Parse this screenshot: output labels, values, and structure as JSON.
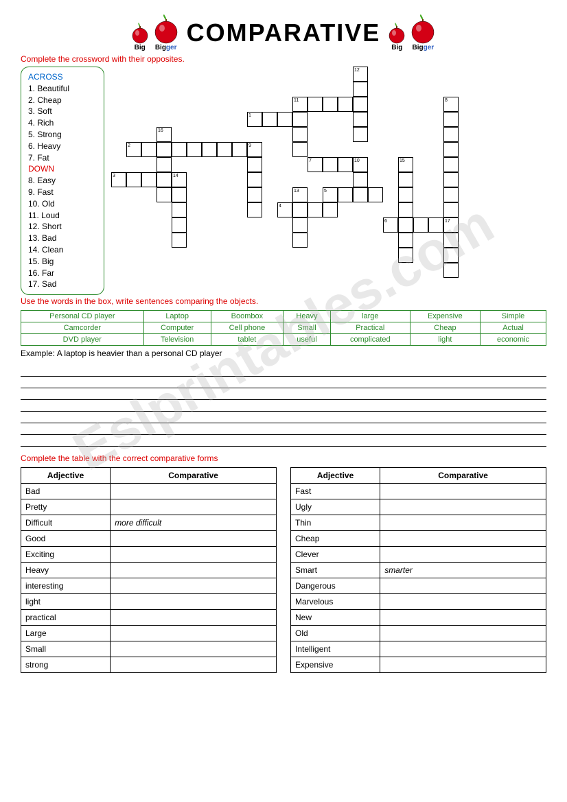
{
  "title": "COMPARATIVE",
  "apple_labels": {
    "big": "Big",
    "bigger_base": "Big",
    "bigger_suffix": "ger"
  },
  "instruction1": "Complete the crossword with their opposites.",
  "clues": {
    "across_label": "ACROSS",
    "across": [
      "1. Beautiful",
      "2. Cheap",
      "3. Soft",
      "4. Rich",
      "5. Strong",
      "6. Heavy",
      "7. Fat"
    ],
    "down_label": "DOWN",
    "down": [
      "8. Easy",
      "9. Fast",
      "10. Old",
      "11. Loud",
      "12. Short",
      "13. Bad",
      "14. Clean",
      "15. Big",
      "16. Far",
      "17. Sad"
    ]
  },
  "crossword_cells": [
    {
      "r": 0,
      "c": 16,
      "n": "12"
    },
    {
      "r": 1,
      "c": 16
    },
    {
      "r": 2,
      "c": 12,
      "n": "11"
    },
    {
      "r": 2,
      "c": 13
    },
    {
      "r": 2,
      "c": 14
    },
    {
      "r": 2,
      "c": 15
    },
    {
      "r": 2,
      "c": 16
    },
    {
      "r": 2,
      "c": 22,
      "n": "8"
    },
    {
      "r": 3,
      "c": 9,
      "n": "1"
    },
    {
      "r": 3,
      "c": 10
    },
    {
      "r": 3,
      "c": 11
    },
    {
      "r": 3,
      "c": 12
    },
    {
      "r": 3,
      "c": 16
    },
    {
      "r": 3,
      "c": 22
    },
    {
      "r": 4,
      "c": 3,
      "n": "16"
    },
    {
      "r": 4,
      "c": 12
    },
    {
      "r": 4,
      "c": 16
    },
    {
      "r": 4,
      "c": 22
    },
    {
      "r": 5,
      "c": 1,
      "n": "2"
    },
    {
      "r": 5,
      "c": 2
    },
    {
      "r": 5,
      "c": 3
    },
    {
      "r": 5,
      "c": 4
    },
    {
      "r": 5,
      "c": 5
    },
    {
      "r": 5,
      "c": 6
    },
    {
      "r": 5,
      "c": 7
    },
    {
      "r": 5,
      "c": 8
    },
    {
      "r": 5,
      "c": 9,
      "n": "9"
    },
    {
      "r": 5,
      "c": 12
    },
    {
      "r": 5,
      "c": 22
    },
    {
      "r": 6,
      "c": 3
    },
    {
      "r": 6,
      "c": 9
    },
    {
      "r": 6,
      "c": 13,
      "n": "7"
    },
    {
      "r": 6,
      "c": 14
    },
    {
      "r": 6,
      "c": 15
    },
    {
      "r": 6,
      "c": 16,
      "n": "10"
    },
    {
      "r": 6,
      "c": 19,
      "n": "15"
    },
    {
      "r": 6,
      "c": 22
    },
    {
      "r": 7,
      "c": 0,
      "n": "3"
    },
    {
      "r": 7,
      "c": 1
    },
    {
      "r": 7,
      "c": 2
    },
    {
      "r": 7,
      "c": 3
    },
    {
      "r": 7,
      "c": 4,
      "n": "14"
    },
    {
      "r": 7,
      "c": 9
    },
    {
      "r": 7,
      "c": 16
    },
    {
      "r": 7,
      "c": 19
    },
    {
      "r": 7,
      "c": 22
    },
    {
      "r": 8,
      "c": 3
    },
    {
      "r": 8,
      "c": 4
    },
    {
      "r": 8,
      "c": 9
    },
    {
      "r": 8,
      "c": 12,
      "n": "13"
    },
    {
      "r": 8,
      "c": 14,
      "n": "5"
    },
    {
      "r": 8,
      "c": 15
    },
    {
      "r": 8,
      "c": 16
    },
    {
      "r": 8,
      "c": 17
    },
    {
      "r": 8,
      "c": 19
    },
    {
      "r": 8,
      "c": 22
    },
    {
      "r": 9,
      "c": 4
    },
    {
      "r": 9,
      "c": 9
    },
    {
      "r": 9,
      "c": 11,
      "n": "4"
    },
    {
      "r": 9,
      "c": 12
    },
    {
      "r": 9,
      "c": 13
    },
    {
      "r": 9,
      "c": 14
    },
    {
      "r": 9,
      "c": 19
    },
    {
      "r": 9,
      "c": 22
    },
    {
      "r": 10,
      "c": 4
    },
    {
      "r": 10,
      "c": 12
    },
    {
      "r": 10,
      "c": 18,
      "n": "6"
    },
    {
      "r": 10,
      "c": 19
    },
    {
      "r": 10,
      "c": 20
    },
    {
      "r": 10,
      "c": 21
    },
    {
      "r": 10,
      "c": 22,
      "n": "17"
    },
    {
      "r": 11,
      "c": 4
    },
    {
      "r": 11,
      "c": 12
    },
    {
      "r": 11,
      "c": 19
    },
    {
      "r": 11,
      "c": 22
    },
    {
      "r": 12,
      "c": 19
    },
    {
      "r": 12,
      "c": 22
    },
    {
      "r": 13,
      "c": 22
    }
  ],
  "cell_size": 22,
  "instruction2": "Use the words in the box, write sentences comparing the objects.",
  "word_table": [
    [
      "Personal CD player",
      "Laptop",
      "Boombox",
      "Heavy",
      "large",
      "Expensive",
      "Simple"
    ],
    [
      "Camcorder",
      "Computer",
      "Cell phone",
      "Small",
      "Practical",
      "Cheap",
      "Actual"
    ],
    [
      "DVD player",
      "Television",
      "tablet",
      "useful",
      "complicated",
      "light",
      "economic"
    ]
  ],
  "example": "Example: A laptop is heavier than a personal CD player",
  "instruction3": "Complete the table with the correct comparative forms",
  "table_headers": {
    "adj": "Adjective",
    "comp": "Comparative"
  },
  "table_left": [
    {
      "adj": "Bad",
      "comp": ""
    },
    {
      "adj": "Pretty",
      "comp": ""
    },
    {
      "adj": "Difficult",
      "comp": "more difficult"
    },
    {
      "adj": "Good",
      "comp": ""
    },
    {
      "adj": "Exciting",
      "comp": ""
    },
    {
      "adj": "Heavy",
      "comp": ""
    },
    {
      "adj": "interesting",
      "comp": ""
    },
    {
      "adj": "light",
      "comp": ""
    },
    {
      "adj": "practical",
      "comp": ""
    },
    {
      "adj": "Large",
      "comp": ""
    },
    {
      "adj": "Small",
      "comp": ""
    },
    {
      "adj": "strong",
      "comp": ""
    }
  ],
  "table_right": [
    {
      "adj": "Fast",
      "comp": ""
    },
    {
      "adj": "Ugly",
      "comp": ""
    },
    {
      "adj": "Thin",
      "comp": ""
    },
    {
      "adj": "Cheap",
      "comp": ""
    },
    {
      "adj": "Clever",
      "comp": ""
    },
    {
      "adj": "Smart",
      "comp": "smarter"
    },
    {
      "adj": "Dangerous",
      "comp": ""
    },
    {
      "adj": "Marvelous",
      "comp": ""
    },
    {
      "adj": "New",
      "comp": ""
    },
    {
      "adj": "Old",
      "comp": ""
    },
    {
      "adj": "Intelligent",
      "comp": ""
    },
    {
      "adj": "Expensive",
      "comp": ""
    }
  ],
  "watermark": "Eslprintables.com"
}
